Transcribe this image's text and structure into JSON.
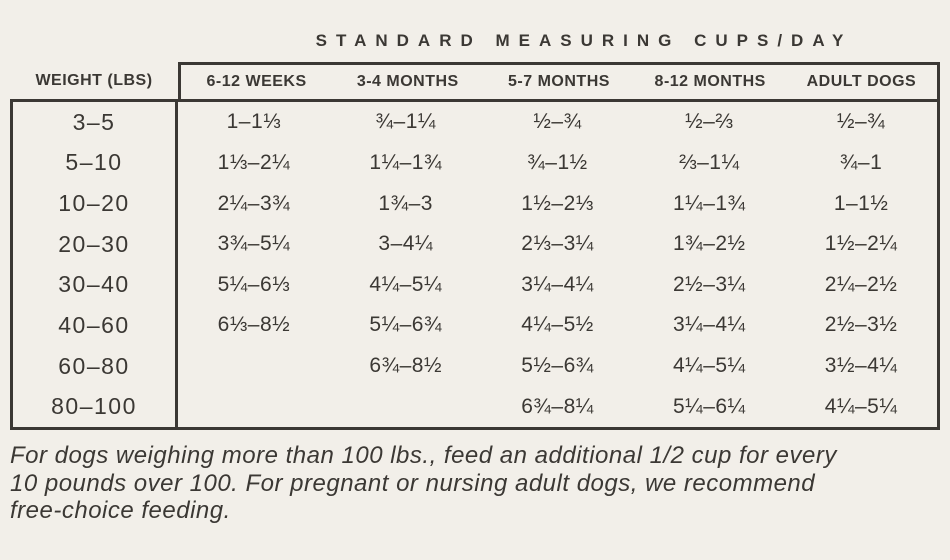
{
  "colors": {
    "background": "#f2efe9",
    "ink": "#3b3834"
  },
  "title": "STANDARD MEASURING CUPS/DAY",
  "table": {
    "weight_header": "WEIGHT (LBS)",
    "age_headers": [
      "6-12 WEEKS",
      "3-4 MONTHS",
      "5-7 MONTHS",
      "8-12 MONTHS",
      "ADULT DOGS"
    ],
    "rows": [
      {
        "weight": "3–5",
        "values": [
          "1–1⅓",
          "¾–1¼",
          "½–¾",
          "½–⅔",
          "½–¾"
        ]
      },
      {
        "weight": "5–10",
        "values": [
          "1⅓–2¼",
          "1¼–1¾",
          "¾–1½",
          "⅔–1¼",
          "¾–1"
        ]
      },
      {
        "weight": "10–20",
        "values": [
          "2¼–3¾",
          "1¾–3",
          "1½–2⅓",
          "1¼–1¾",
          "1–1½"
        ]
      },
      {
        "weight": "20–30",
        "values": [
          "3¾–5¼",
          "3–4¼",
          "2⅓–3¼",
          "1¾–2½",
          "1½–2¼"
        ]
      },
      {
        "weight": "30–40",
        "values": [
          "5¼–6⅓",
          "4¼–5¼",
          "3¼–4¼",
          "2½–3¼",
          "2¼–2½"
        ]
      },
      {
        "weight": "40–60",
        "values": [
          "6⅓–8½",
          "5¼–6¾",
          "4¼–5½",
          "3¼–4¼",
          "2½–3½"
        ]
      },
      {
        "weight": "60–80",
        "values": [
          "",
          "6¾–8½",
          "5½–6¾",
          "4¼–5¼",
          "3½–4¼"
        ]
      },
      {
        "weight": "80–100",
        "values": [
          "",
          "",
          "6¾–8¼",
          "5¼–6¼",
          "4¼–5¼"
        ]
      }
    ]
  },
  "footnote": {
    "lines": [
      "For dogs weighing more than 100 lbs., feed an additional 1/2 cup for every",
      "10 pounds over 100. For pregnant or nursing adult dogs, we recommend",
      "free-choice feeding."
    ]
  }
}
